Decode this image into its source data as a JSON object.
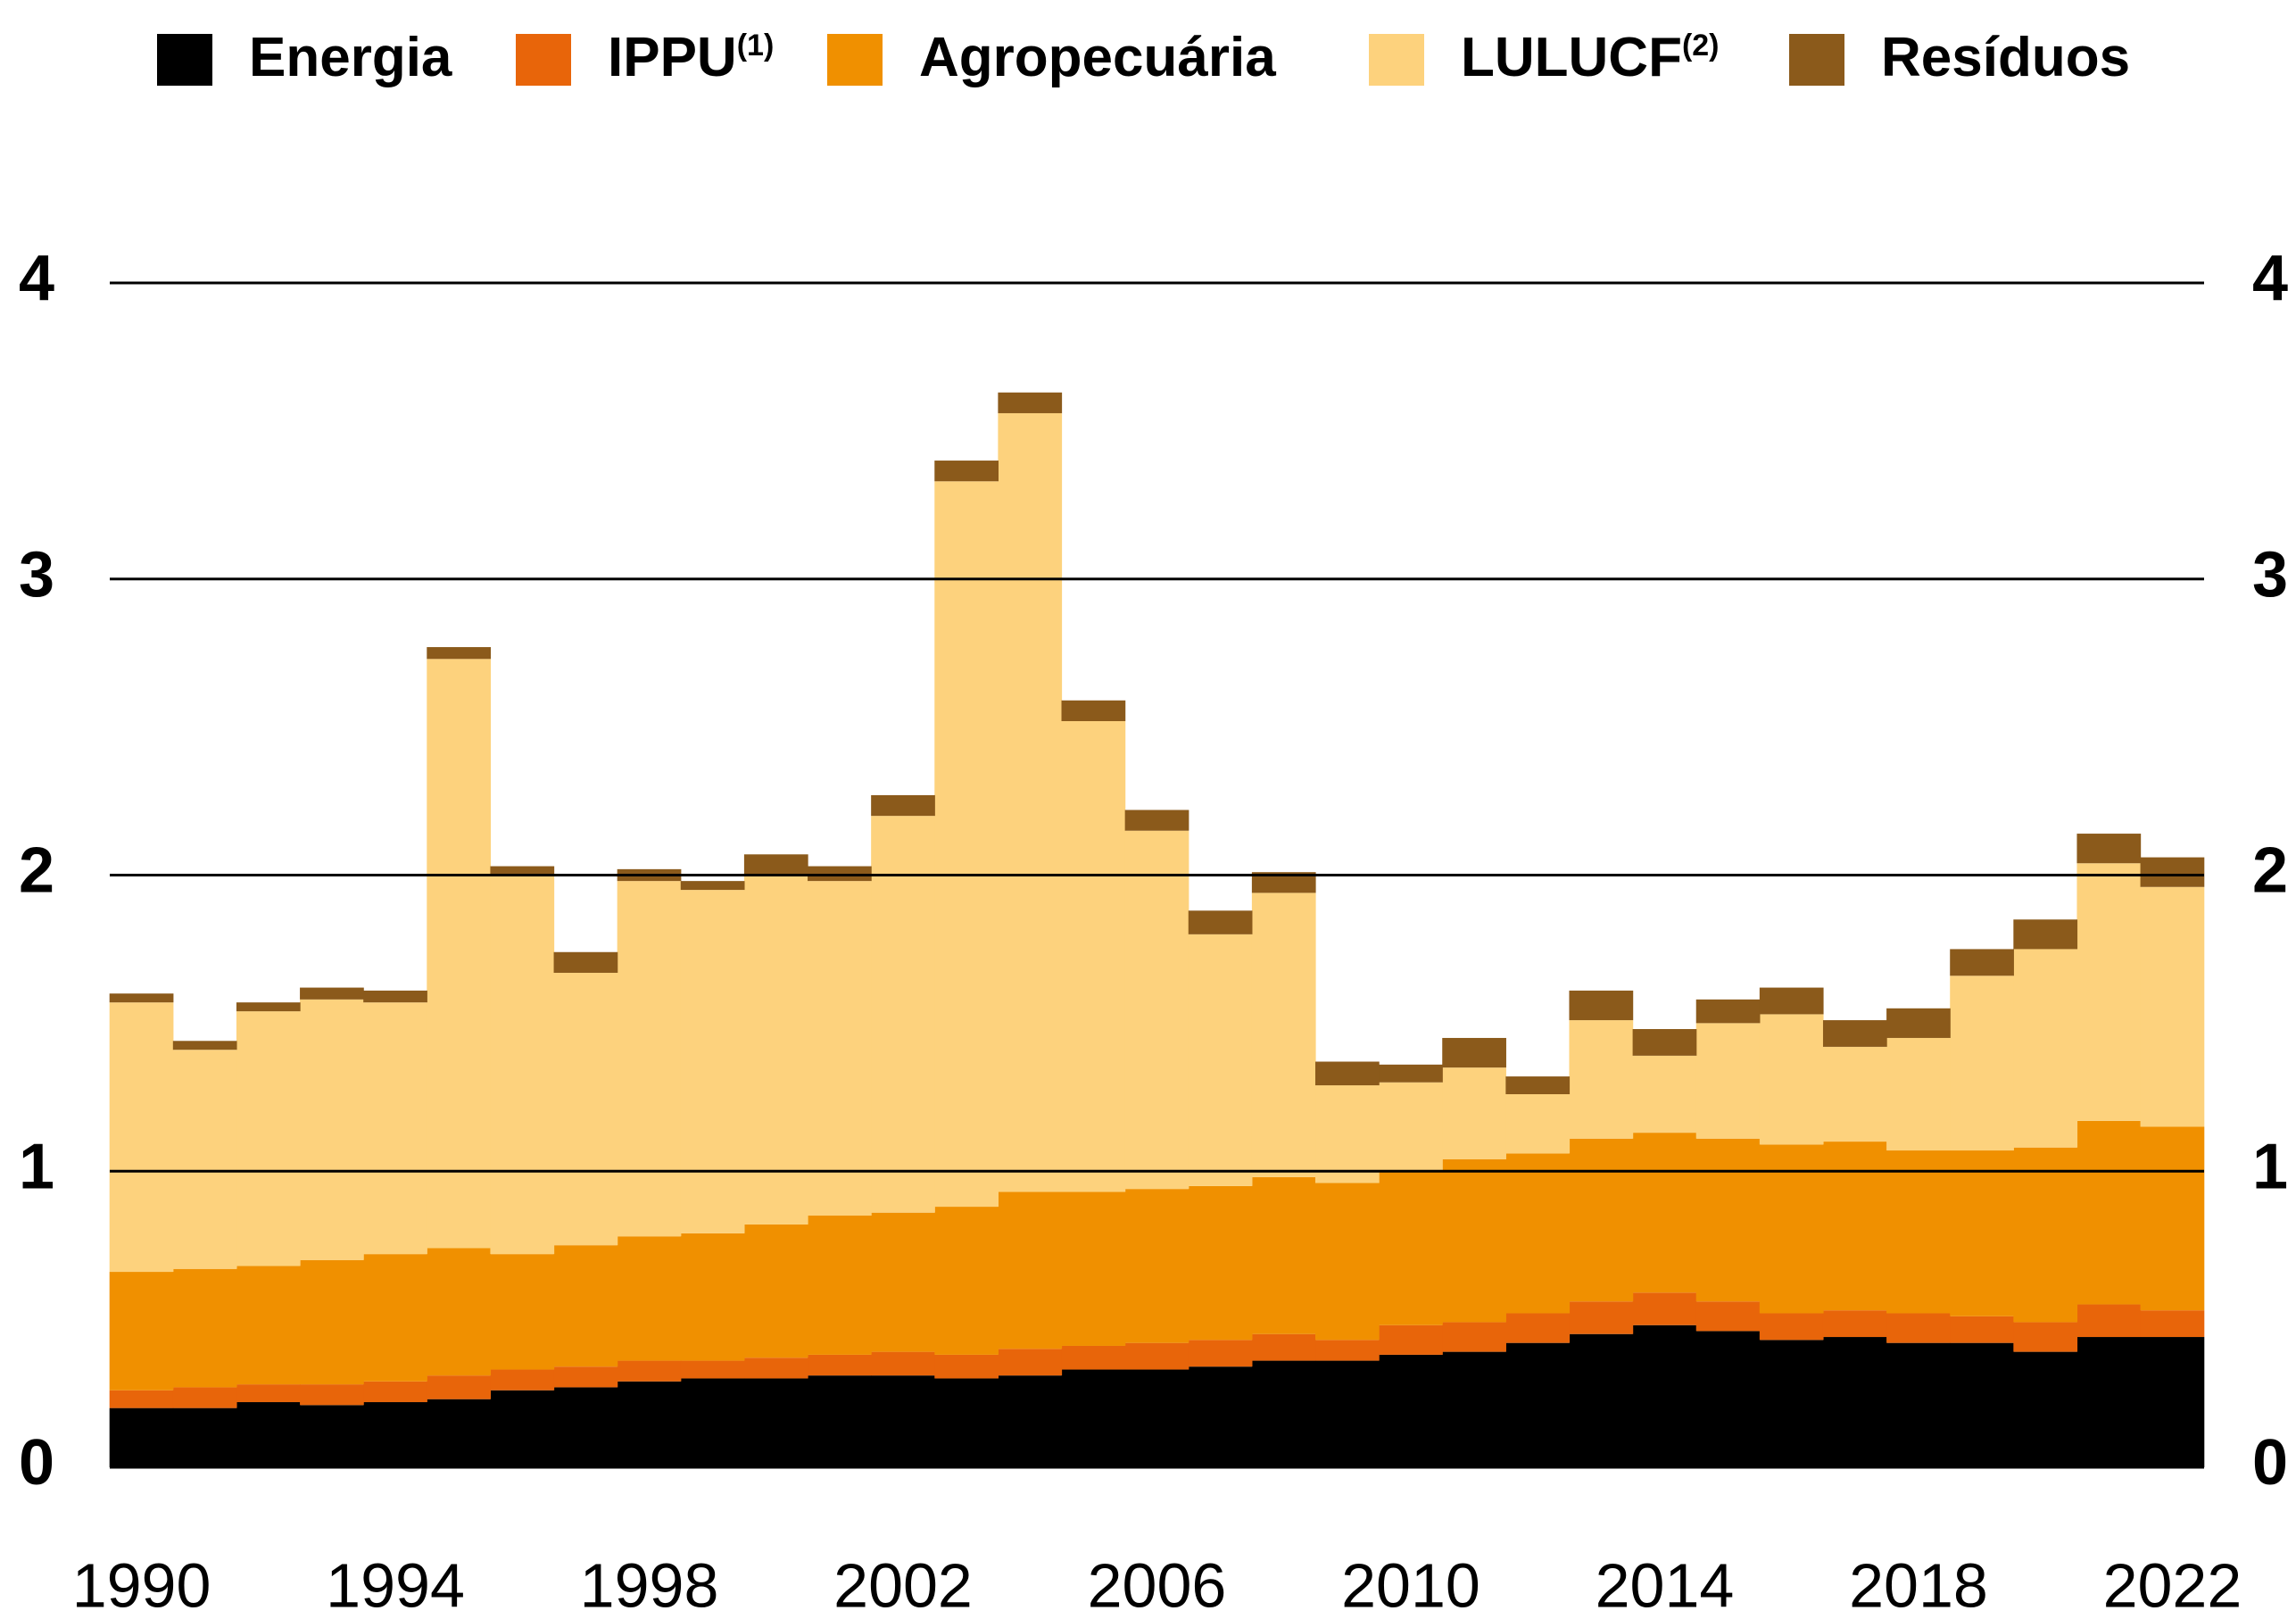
{
  "chart_data": {
    "type": "stacked_bar",
    "categories": [
      1990,
      1991,
      1992,
      1993,
      1994,
      1995,
      1996,
      1997,
      1998,
      1999,
      2000,
      2001,
      2002,
      2003,
      2004,
      2005,
      2006,
      2007,
      2008,
      2009,
      2010,
      2011,
      2012,
      2013,
      2014,
      2015,
      2016,
      2017,
      2018,
      2019,
      2020,
      2021,
      2022
    ],
    "xticks": [
      1990,
      1994,
      1998,
      2002,
      2006,
      2010,
      2014,
      2018,
      2022
    ],
    "ylim": [
      0,
      4
    ],
    "yticks": [
      0,
      1,
      2,
      3,
      4
    ],
    "grid": true,
    "legend": "top",
    "right_axis": true,
    "series": [
      {
        "name": "Energia",
        "color": "#000000",
        "values": [
          0.2,
          0.2,
          0.22,
          0.21,
          0.22,
          0.23,
          0.26,
          0.27,
          0.29,
          0.3,
          0.3,
          0.31,
          0.31,
          0.3,
          0.31,
          0.33,
          0.33,
          0.34,
          0.36,
          0.36,
          0.38,
          0.39,
          0.42,
          0.45,
          0.48,
          0.46,
          0.43,
          0.44,
          0.42,
          0.42,
          0.39,
          0.44,
          0.44
        ]
      },
      {
        "name": "IPPU",
        "footnote": "(1)",
        "color": "#e8650a",
        "values": [
          0.06,
          0.07,
          0.06,
          0.07,
          0.07,
          0.08,
          0.07,
          0.07,
          0.07,
          0.06,
          0.07,
          0.07,
          0.08,
          0.08,
          0.09,
          0.08,
          0.09,
          0.09,
          0.09,
          0.07,
          0.1,
          0.1,
          0.1,
          0.11,
          0.11,
          0.1,
          0.09,
          0.09,
          0.1,
          0.09,
          0.1,
          0.11,
          0.09
        ]
      },
      {
        "name": "Agropecuária",
        "color": "#f09000",
        "values": [
          0.4,
          0.4,
          0.4,
          0.42,
          0.43,
          0.43,
          0.39,
          0.41,
          0.42,
          0.43,
          0.45,
          0.47,
          0.47,
          0.5,
          0.53,
          0.52,
          0.52,
          0.52,
          0.53,
          0.53,
          0.52,
          0.55,
          0.54,
          0.55,
          0.54,
          0.55,
          0.57,
          0.57,
          0.55,
          0.56,
          0.59,
          0.62,
          0.62
        ]
      },
      {
        "name": "LULUCF",
        "footnote": "(2)",
        "color": "#fdd27d",
        "values": [
          0.91,
          0.74,
          0.86,
          0.88,
          0.85,
          1.99,
          1.28,
          0.92,
          1.2,
          1.16,
          1.18,
          1.13,
          1.34,
          2.45,
          2.63,
          1.59,
          1.21,
          0.85,
          0.96,
          0.33,
          0.3,
          0.31,
          0.2,
          0.4,
          0.26,
          0.39,
          0.44,
          0.32,
          0.38,
          0.59,
          0.67,
          0.87,
          0.81
        ]
      },
      {
        "name": "Resíduos",
        "color": "#8b5a1b",
        "values": [
          0.03,
          0.03,
          0.03,
          0.04,
          0.04,
          0.04,
          0.03,
          0.07,
          0.04,
          0.03,
          0.07,
          0.05,
          0.07,
          0.07,
          0.07,
          0.07,
          0.07,
          0.08,
          0.07,
          0.08,
          0.06,
          0.1,
          0.06,
          0.1,
          0.09,
          0.08,
          0.09,
          0.09,
          0.1,
          0.09,
          0.1,
          0.1,
          0.1
        ]
      }
    ]
  }
}
